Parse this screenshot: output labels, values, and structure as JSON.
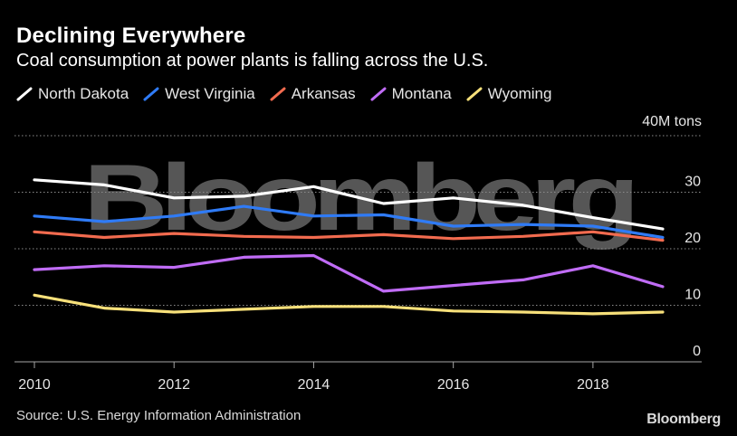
{
  "header": {
    "title": "Declining Everywhere",
    "subtitle": "Coal consumption at power plants is falling across the U.S."
  },
  "footer": {
    "source": "Source: U.S. Energy Information Administration",
    "brand": "Bloomberg"
  },
  "watermark": "Bloomberg",
  "chart_data": {
    "type": "line",
    "title": "Declining Everywhere",
    "subtitle": "Coal consumption at power plants is falling across the U.S.",
    "unit_label": "40M tons",
    "xlabel": "",
    "ylabel": "",
    "x": [
      2010,
      2011,
      2012,
      2013,
      2014,
      2015,
      2016,
      2017,
      2018,
      2019
    ],
    "x_ticks": [
      "2010",
      "2012",
      "2014",
      "2016",
      "2018"
    ],
    "x_tick_values": [
      2010,
      2012,
      2014,
      2016,
      2018
    ],
    "y_ticks": [
      "0",
      "10",
      "20",
      "30"
    ],
    "y_tick_values": [
      0,
      10,
      20,
      30
    ],
    "xlim": [
      2010,
      2019
    ],
    "ylim": [
      0,
      40
    ],
    "grid": true,
    "legend_position": "top-left",
    "series": [
      {
        "name": "North Dakota",
        "color": "#ffffff",
        "values": [
          32.2,
          31.3,
          29.0,
          29.3,
          31.0,
          28.0,
          29.0,
          27.7,
          25.5,
          23.5
        ]
      },
      {
        "name": "West Virginia",
        "color": "#2f7bf6",
        "values": [
          25.8,
          24.8,
          25.8,
          27.5,
          25.8,
          26.0,
          24.0,
          24.3,
          24.0,
          22.0
        ]
      },
      {
        "name": "Arkansas",
        "color": "#f26b4f",
        "values": [
          23.0,
          22.0,
          22.7,
          22.2,
          22.0,
          22.5,
          21.8,
          22.2,
          23.0,
          21.5
        ]
      },
      {
        "name": "Montana",
        "color": "#c06cf6",
        "values": [
          16.3,
          17.0,
          16.7,
          18.5,
          18.8,
          12.5,
          13.5,
          14.5,
          17.0,
          13.3
        ]
      },
      {
        "name": "Wyoming",
        "color": "#f7e07a",
        "values": [
          11.8,
          9.5,
          8.8,
          9.3,
          9.8,
          9.8,
          9.0,
          8.8,
          8.5,
          8.8
        ]
      }
    ]
  }
}
